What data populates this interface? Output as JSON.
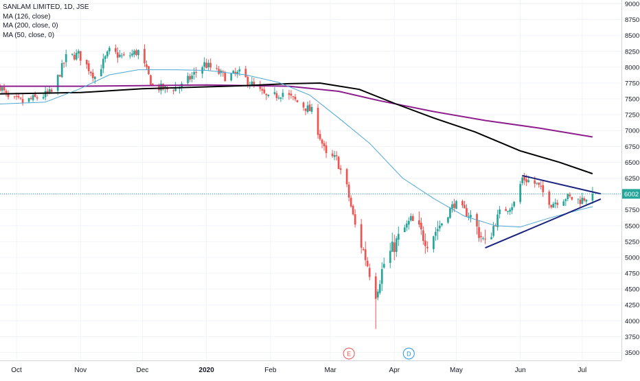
{
  "legend": {
    "symbol": "SANLAM LIMITED, 1D, JSE",
    "ma126": "MA (126, close)",
    "ma200": "MA (200, close, 0)",
    "ma50": "MA (50, close, 0)"
  },
  "colors": {
    "up": "#26a69a",
    "down": "#ef5350",
    "ma50": "#4ba6d6",
    "ma126": "#000000",
    "ma200": "#8e1e8e",
    "triangle": "#1a237e",
    "price_line": "#26a69a",
    "grid": "#f0f3fa",
    "axis_text": "#131722",
    "event_e": "#ef5350",
    "event_d": "#2196f3"
  },
  "current_price_label": "6002",
  "event_markers": [
    {
      "label": "E",
      "date": "2020-03-10"
    },
    {
      "label": "D",
      "date": "2020-04-08"
    }
  ],
  "chart_data": {
    "type": "candlestick",
    "xaxis": {
      "range": [
        "2019-09-23",
        "2020-07-20"
      ],
      "ticks": [
        {
          "date": "2019-10-01",
          "label": "Oct"
        },
        {
          "date": "2019-11-01",
          "label": "Nov"
        },
        {
          "date": "2019-12-01",
          "label": "Dec"
        },
        {
          "date": "2020-01-01",
          "label": "2020"
        },
        {
          "date": "2020-02-01",
          "label": "Feb"
        },
        {
          "date": "2020-03-01",
          "label": "Mar"
        },
        {
          "date": "2020-04-01",
          "label": "Apr"
        },
        {
          "date": "2020-05-01",
          "label": "May"
        },
        {
          "date": "2020-06-01",
          "label": "Jun"
        },
        {
          "date": "2020-07-01",
          "label": "Jul"
        }
      ]
    },
    "yaxis": {
      "range": [
        3375,
        9060
      ],
      "ticks": [
        9000,
        8750,
        8500,
        8250,
        8000,
        7750,
        7500,
        7250,
        7000,
        6750,
        6500,
        6250,
        6000,
        5750,
        5500,
        5250,
        5000,
        4750,
        4500,
        4250,
        4000,
        3750,
        3500
      ]
    },
    "current_price": 6002,
    "close_path": [
      {
        "date": "2019-09-23",
        "close": 7700
      },
      {
        "date": "2019-09-27",
        "close": 7500
      },
      {
        "date": "2019-10-04",
        "close": 7450
      },
      {
        "date": "2019-10-11",
        "close": 7520
      },
      {
        "date": "2019-10-18",
        "close": 7600
      },
      {
        "date": "2019-10-25",
        "close": 8150
      },
      {
        "date": "2019-10-31",
        "close": 8200
      },
      {
        "date": "2019-11-08",
        "close": 7850
      },
      {
        "date": "2019-11-15",
        "close": 8250
      },
      {
        "date": "2019-11-22",
        "close": 8150
      },
      {
        "date": "2019-11-29",
        "close": 8250
      },
      {
        "date": "2019-12-06",
        "close": 7700
      },
      {
        "date": "2019-12-13",
        "close": 7650
      },
      {
        "date": "2019-12-20",
        "close": 7700
      },
      {
        "date": "2019-12-31",
        "close": 8050
      },
      {
        "date": "2020-01-10",
        "close": 7850
      },
      {
        "date": "2020-01-17",
        "close": 7900
      },
      {
        "date": "2020-01-24",
        "close": 7700
      },
      {
        "date": "2020-01-31",
        "close": 7500
      },
      {
        "date": "2020-02-07",
        "close": 7600
      },
      {
        "date": "2020-02-14",
        "close": 7450
      },
      {
        "date": "2020-02-21",
        "close": 7300
      },
      {
        "date": "2020-02-28",
        "close": 6600
      },
      {
        "date": "2020-03-04",
        "close": 6550
      },
      {
        "date": "2020-03-09",
        "close": 6100
      },
      {
        "date": "2020-03-13",
        "close": 5500
      },
      {
        "date": "2020-03-18",
        "close": 5000
      },
      {
        "date": "2020-03-23",
        "close": 4450
      },
      {
        "date": "2020-03-27",
        "close": 4900
      },
      {
        "date": "2020-04-03",
        "close": 5300
      },
      {
        "date": "2020-04-09",
        "close": 5600
      },
      {
        "date": "2020-04-17",
        "close": 5250
      },
      {
        "date": "2020-04-24",
        "close": 5550
      },
      {
        "date": "2020-04-30",
        "close": 5850
      },
      {
        "date": "2020-05-08",
        "close": 5650
      },
      {
        "date": "2020-05-15",
        "close": 5200
      },
      {
        "date": "2020-05-22",
        "close": 5700
      },
      {
        "date": "2020-05-29",
        "close": 5850
      },
      {
        "date": "2020-06-02",
        "close": 6250
      },
      {
        "date": "2020-06-09",
        "close": 6150
      },
      {
        "date": "2020-06-16",
        "close": 5850
      },
      {
        "date": "2020-06-23",
        "close": 5950
      },
      {
        "date": "2020-06-30",
        "close": 5900
      },
      {
        "date": "2020-07-06",
        "close": 6002
      }
    ],
    "ma50": [
      {
        "date": "2019-09-23",
        "value": 7420
      },
      {
        "date": "2019-10-15",
        "value": 7450
      },
      {
        "date": "2019-10-31",
        "value": 7650
      },
      {
        "date": "2019-11-15",
        "value": 7880
      },
      {
        "date": "2019-11-29",
        "value": 7960
      },
      {
        "date": "2019-12-15",
        "value": 7960
      },
      {
        "date": "2020-01-01",
        "value": 7950
      },
      {
        "date": "2020-01-20",
        "value": 7880
      },
      {
        "date": "2020-02-05",
        "value": 7760
      },
      {
        "date": "2020-02-20",
        "value": 7560
      },
      {
        "date": "2020-03-05",
        "value": 7200
      },
      {
        "date": "2020-03-20",
        "value": 6800
      },
      {
        "date": "2020-04-05",
        "value": 6250
      },
      {
        "date": "2020-04-20",
        "value": 5930
      },
      {
        "date": "2020-05-05",
        "value": 5650
      },
      {
        "date": "2020-05-20",
        "value": 5500
      },
      {
        "date": "2020-06-01",
        "value": 5480
      },
      {
        "date": "2020-06-15",
        "value": 5620
      },
      {
        "date": "2020-07-01",
        "value": 5760
      },
      {
        "date": "2020-07-06",
        "value": 5800
      }
    ],
    "ma126": [
      {
        "date": "2019-09-23",
        "value": 7580
      },
      {
        "date": "2019-11-01",
        "value": 7600
      },
      {
        "date": "2019-12-01",
        "value": 7660
      },
      {
        "date": "2020-01-01",
        "value": 7690
      },
      {
        "date": "2020-01-20",
        "value": 7710
      },
      {
        "date": "2020-02-10",
        "value": 7740
      },
      {
        "date": "2020-02-25",
        "value": 7750
      },
      {
        "date": "2020-03-15",
        "value": 7650
      },
      {
        "date": "2020-04-01",
        "value": 7430
      },
      {
        "date": "2020-04-20",
        "value": 7200
      },
      {
        "date": "2020-05-10",
        "value": 6980
      },
      {
        "date": "2020-06-01",
        "value": 6680
      },
      {
        "date": "2020-06-20",
        "value": 6500
      },
      {
        "date": "2020-07-06",
        "value": 6320
      }
    ],
    "ma200": [
      {
        "date": "2019-09-23",
        "value": 7700
      },
      {
        "date": "2019-11-01",
        "value": 7700
      },
      {
        "date": "2019-12-01",
        "value": 7710
      },
      {
        "date": "2020-01-01",
        "value": 7720
      },
      {
        "date": "2020-02-10",
        "value": 7700
      },
      {
        "date": "2020-03-05",
        "value": 7620
      },
      {
        "date": "2020-03-25",
        "value": 7470
      },
      {
        "date": "2020-04-20",
        "value": 7300
      },
      {
        "date": "2020-05-15",
        "value": 7160
      },
      {
        "date": "2020-06-10",
        "value": 7040
      },
      {
        "date": "2020-07-06",
        "value": 6900
      }
    ],
    "triangle": {
      "upper": [
        {
          "date": "2020-06-02",
          "value": 6290
        },
        {
          "date": "2020-07-10",
          "value": 6002
        }
      ],
      "lower": [
        {
          "date": "2020-05-15",
          "value": 5150
        },
        {
          "date": "2020-07-10",
          "value": 5920
        }
      ]
    }
  }
}
